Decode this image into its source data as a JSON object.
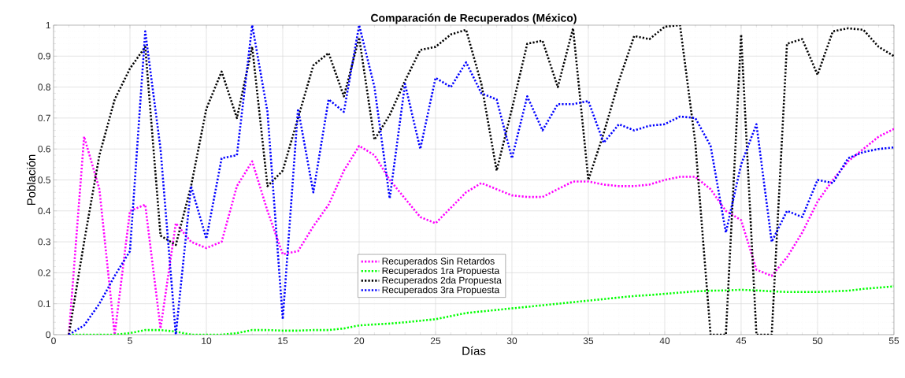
{
  "chart_data": {
    "type": "line",
    "title": "Comparación de Recuperados (México)",
    "xlabel": "Días",
    "ylabel": "Población",
    "x": [
      1,
      2,
      3,
      4,
      5,
      6,
      7,
      8,
      9,
      10,
      11,
      12,
      13,
      14,
      15,
      16,
      17,
      18,
      19,
      20,
      21,
      22,
      23,
      24,
      25,
      26,
      27,
      28,
      29,
      30,
      31,
      32,
      33,
      34,
      35,
      36,
      37,
      38,
      39,
      40,
      41,
      42,
      43,
      44,
      45,
      46,
      47,
      48,
      49,
      50,
      51,
      52,
      53,
      54,
      55
    ],
    "series": [
      {
        "name": "Recuperados Sin Retardos",
        "color": "#ff00ff",
        "values": [
          0,
          0.64,
          0.47,
          0,
          0.4,
          0.42,
          0.02,
          0.36,
          0.3,
          0.28,
          0.3,
          0.48,
          0.56,
          0.4,
          0.26,
          0.27,
          0.35,
          0.42,
          0.53,
          0.61,
          0.58,
          0.5,
          0.44,
          0.38,
          0.36,
          0.41,
          0.46,
          0.49,
          0.47,
          0.45,
          0.445,
          0.445,
          0.47,
          0.495,
          0.495,
          0.485,
          0.48,
          0.48,
          0.485,
          0.5,
          0.51,
          0.51,
          0.47,
          0.4,
          0.37,
          0.21,
          0.19,
          0.25,
          0.33,
          0.43,
          0.5,
          0.56,
          0.6,
          0.64,
          0.665
        ]
      },
      {
        "name": "Recuperados 1ra Propuesta",
        "color": "#00ff00",
        "values": [
          0,
          0,
          0,
          0,
          0.005,
          0.015,
          0.015,
          0.01,
          0,
          0,
          0,
          0.005,
          0.015,
          0.015,
          0.013,
          0.013,
          0.015,
          0.015,
          0.02,
          0.03,
          0.033,
          0.036,
          0.04,
          0.045,
          0.05,
          0.06,
          0.07,
          0.075,
          0.08,
          0.085,
          0.09,
          0.095,
          0.1,
          0.105,
          0.11,
          0.115,
          0.12,
          0.125,
          0.128,
          0.132,
          0.136,
          0.14,
          0.142,
          0.143,
          0.145,
          0.143,
          0.14,
          0.138,
          0.138,
          0.138,
          0.14,
          0.142,
          0.148,
          0.152,
          0.156
        ]
      },
      {
        "name": "Recuperados 2da Propuesta",
        "color": "#000000",
        "values": [
          0,
          0.3,
          0.58,
          0.76,
          0.86,
          0.93,
          0.32,
          0.29,
          0.48,
          0.73,
          0.85,
          0.7,
          0.93,
          0.48,
          0.53,
          0.7,
          0.87,
          0.91,
          0.77,
          0.96,
          0.63,
          0.71,
          0.82,
          0.92,
          0.93,
          0.97,
          0.985,
          0.81,
          0.53,
          0.73,
          0.94,
          0.95,
          0.8,
          0.99,
          0.5,
          0.65,
          0.82,
          0.965,
          0.955,
          0.995,
          1.0,
          0.62,
          0,
          0,
          0.97,
          0,
          0,
          0.94,
          0.955,
          0.84,
          0.98,
          0.99,
          0.985,
          0.93,
          0.9
        ]
      },
      {
        "name": "Recuperados 3ra Propuesta",
        "color": "#0000ff",
        "values": [
          0,
          0.03,
          0.1,
          0.19,
          0.27,
          0.98,
          0.6,
          0,
          0.48,
          0.31,
          0.57,
          0.58,
          1.0,
          0.72,
          0.05,
          0.73,
          0.46,
          0.76,
          0.72,
          1.0,
          0.8,
          0.44,
          0.81,
          0.6,
          0.83,
          0.8,
          0.88,
          0.78,
          0.76,
          0.57,
          0.77,
          0.66,
          0.745,
          0.745,
          0.755,
          0.62,
          0.68,
          0.66,
          0.675,
          0.68,
          0.705,
          0.7,
          0.61,
          0.33,
          0.55,
          0.68,
          0.3,
          0.4,
          0.38,
          0.5,
          0.49,
          0.57,
          0.59,
          0.6,
          0.605
        ]
      }
    ],
    "xlim": [
      0,
      55
    ],
    "xticks": [
      0,
      5,
      10,
      15,
      20,
      25,
      30,
      35,
      40,
      45,
      50,
      55
    ],
    "ylim": [
      0,
      1
    ],
    "yticks": [
      0,
      0.1,
      0.2,
      0.3,
      0.4,
      0.5,
      0.6,
      0.7,
      0.8,
      0.9,
      1
    ],
    "grid": true,
    "legend": "bottom",
    "line_style": "dotted",
    "marker": "none"
  }
}
